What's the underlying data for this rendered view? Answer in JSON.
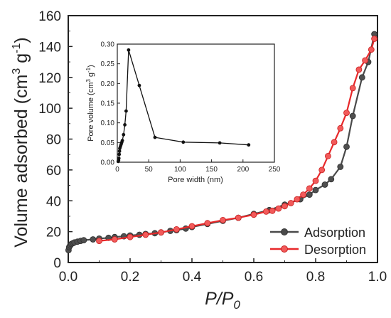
{
  "chart_data": [
    {
      "type": "line",
      "xlabel_parts": [
        "P",
        "/",
        "P",
        "0"
      ],
      "ylabel_parts": [
        "Volume adsorbed (cm",
        "3",
        " g",
        "-1",
        ")"
      ],
      "xlim": [
        0.0,
        1.0
      ],
      "ylim": [
        0,
        160
      ],
      "xticks": [
        "0.0",
        "0.2",
        "0.4",
        "0.6",
        "0.8",
        "1.0"
      ],
      "yticks": [
        "0",
        "20",
        "40",
        "60",
        "80",
        "100",
        "120",
        "140",
        "160"
      ],
      "legend_placement": "bottom-right",
      "series": [
        {
          "name": "Adsorption",
          "color": "#4a4a4a",
          "x": [
            0.001,
            0.003,
            0.006,
            0.01,
            0.015,
            0.02,
            0.03,
            0.04,
            0.05,
            0.08,
            0.1,
            0.13,
            0.15,
            0.18,
            0.2,
            0.23,
            0.25,
            0.28,
            0.3,
            0.33,
            0.35,
            0.38,
            0.4,
            0.45,
            0.5,
            0.55,
            0.6,
            0.65,
            0.7,
            0.75,
            0.78,
            0.8,
            0.83,
            0.85,
            0.88,
            0.9,
            0.92,
            0.95,
            0.97,
            0.99
          ],
          "y": [
            8,
            10,
            11,
            12,
            12.5,
            13,
            13.5,
            14,
            14.5,
            15,
            15.5,
            16,
            16.5,
            17,
            17.5,
            18,
            18.5,
            19,
            19.5,
            20.5,
            21,
            22,
            23,
            25,
            27,
            29,
            31.5,
            34,
            37.5,
            41,
            44,
            47,
            50.5,
            54,
            62,
            75,
            95,
            120,
            130,
            148
          ]
        },
        {
          "name": "Desorption",
          "color": "#e8282a",
          "x": [
            0.99,
            0.98,
            0.96,
            0.94,
            0.92,
            0.9,
            0.88,
            0.86,
            0.84,
            0.82,
            0.8,
            0.78,
            0.76,
            0.74,
            0.72,
            0.7,
            0.68,
            0.66,
            0.64,
            0.6,
            0.55,
            0.5,
            0.45,
            0.4,
            0.35,
            0.3,
            0.25,
            0.2,
            0.15,
            0.1
          ],
          "y": [
            145,
            138,
            131,
            125,
            113,
            97,
            87,
            78,
            69,
            60,
            53,
            48,
            44,
            41,
            38.5,
            36.5,
            35,
            33.5,
            33,
            31,
            29,
            27.5,
            25.5,
            23.5,
            21.5,
            19.5,
            18,
            16.5,
            15,
            14
          ]
        }
      ]
    },
    {
      "type": "line",
      "xlabel": "Pore width (nm)",
      "ylabel_parts": [
        "Pore volume (cm",
        "3",
        " g",
        "-1",
        ")"
      ],
      "xlim": [
        0,
        250
      ],
      "ylim": [
        0.0,
        0.3
      ],
      "xticks": [
        "0",
        "50",
        "100",
        "150",
        "200",
        "250"
      ],
      "yticks": [
        "0.00",
        "0.05",
        "0.10",
        "0.15",
        "0.20",
        "0.25",
        "0.30"
      ],
      "series": [
        {
          "color": "#111111",
          "x": [
            1.5,
            2,
            2.5,
            3,
            3.5,
            4,
            5,
            6,
            7,
            8,
            10,
            12,
            14,
            18,
            35,
            60,
            105,
            163,
            209
          ],
          "y": [
            0.002,
            0.005,
            0.01,
            0.02,
            0.028,
            0.035,
            0.04,
            0.045,
            0.05,
            0.055,
            0.07,
            0.095,
            0.13,
            0.285,
            0.195,
            0.063,
            0.051,
            0.049,
            0.044
          ]
        }
      ]
    }
  ]
}
